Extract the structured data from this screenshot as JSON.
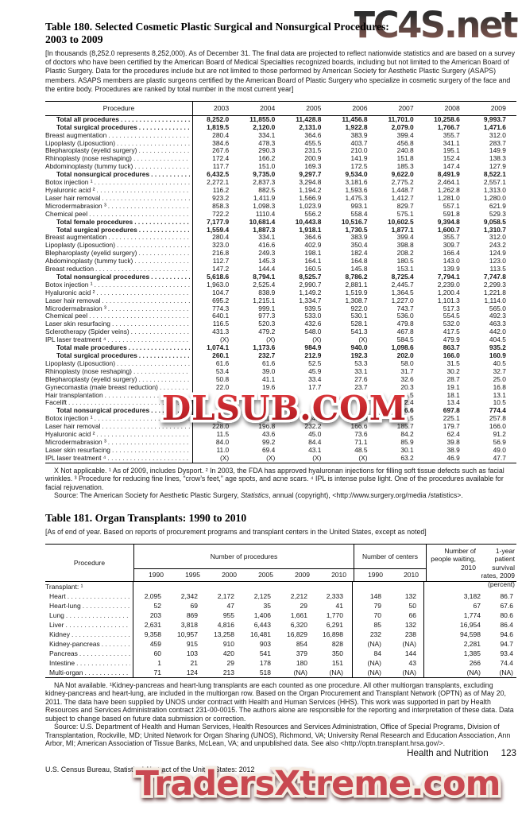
{
  "watermarks": {
    "top": "TC4S.net",
    "top_color_from": "#1d1d1d",
    "top_color_to": "#8f564c",
    "middle": "DLSUB.COM",
    "middle_color_from": "#e23a3f",
    "middle_color_to": "#a8151b",
    "bottom": "TradersXtreme.com",
    "bottom_color": "#c94a51"
  },
  "table180": {
    "title_line1": "Table 180. Selected Cosmetic Plastic Surgical and Nonsurgical Procedures:",
    "title_line2": "2003 to 2009",
    "note": "[In thousands (8,252.0 represents 8,252,000). As of December 31. The final data are projected to reflect nationwide statistics and are based on a survey of doctors who have been certified by the American Board of Medical Specialties recognized boards, including but not limited to the American Board of Plastic Surgery. Data for the procedures include but are not limited to those performed by American Society for Aesthetic Plastic Surgery (ASAPS) members. ASAPS members are plastic surgeons certified by the American Board of Plastic Surgery who specialize in cosmetic surgery of the face and the entire body. Procedures are ranked by total number in the most current year]",
    "col_header": "Procedure",
    "years": [
      "2003",
      "2004",
      "2005",
      "2006",
      "2007",
      "2008",
      "2009"
    ],
    "rows": [
      {
        "label": "Total all procedures",
        "bold": true,
        "values": [
          "8,252.0",
          "11,855.0",
          "11,428.8",
          "11,456.8",
          "11,701.0",
          "10,258.6",
          "9,993.7"
        ]
      },
      {
        "label": "Total surgical procedures",
        "bold": true,
        "values": [
          "1,819.5",
          "2,120.0",
          "2,131.0",
          "1,922.8",
          "2,079.0",
          "1,766.7",
          "1,471.6"
        ]
      },
      {
        "label": "Breast augmentation",
        "bold": false,
        "values": [
          "280.4",
          "334.1",
          "364.6",
          "383.9",
          "399.4",
          "355.7",
          "312.0"
        ]
      },
      {
        "label": "Lipoplasty (Liposuction)",
        "bold": false,
        "values": [
          "384.6",
          "478.3",
          "455.5",
          "403.7",
          "456.8",
          "341.1",
          "283.7"
        ]
      },
      {
        "label": "Blepharoplasty (eyelid surgery)",
        "bold": false,
        "values": [
          "267.6",
          "290.3",
          "231.5",
          "210.0",
          "240.8",
          "195.1",
          "149.9"
        ]
      },
      {
        "label": "Rhinoplasty (nose reshaping)",
        "bold": false,
        "values": [
          "172.4",
          "166.2",
          "200.9",
          "141.9",
          "151.8",
          "152.4",
          "138.3"
        ]
      },
      {
        "label": "Abdominoplasty (tummy tuck)",
        "bold": false,
        "values": [
          "117.7",
          "151.0",
          "169.3",
          "172.5",
          "185.3",
          "147.4",
          "127.9"
        ]
      },
      {
        "label": "Total nonsurgical procedures",
        "bold": true,
        "values": [
          "6,432.5",
          "9,735.0",
          "9,297.7",
          "9,534.0",
          "9,622.0",
          "8,491.9",
          "8,522.1"
        ]
      },
      {
        "label": "Botox injection ¹",
        "bold": false,
        "values": [
          "2,272.1",
          "2,837.3",
          "3,294.8",
          "3,181.6",
          "2,775.2",
          "2,464.1",
          "2,557.1"
        ]
      },
      {
        "label": "Hyaluronic acid ²",
        "bold": false,
        "values": [
          "116.2",
          "882.5",
          "1,194.2",
          "1,593.6",
          "1,448.7",
          "1,262.8",
          "1,313.0"
        ]
      },
      {
        "label": "Laser hair removal",
        "bold": false,
        "values": [
          "923.2",
          "1,411.9",
          "1,566.9",
          "1,475.3",
          "1,412.7",
          "1,281.0",
          "1,280.0"
        ]
      },
      {
        "label": "Microdermabrasion ³",
        "bold": false,
        "values": [
          "858.3",
          "1,098.3",
          "1,023.9",
          "993.1",
          "829.7",
          "557.1",
          "621.9"
        ]
      },
      {
        "label": "Chemical peel",
        "bold": false,
        "values": [
          "722.2",
          "1110.4",
          "556.2",
          "558.4",
          "575.1",
          "591.8",
          "529.3"
        ]
      },
      {
        "label": "Total female procedures",
        "bold": true,
        "values": [
          "7,177.9",
          "10,681.4",
          "10,443.8",
          "10,516.7",
          "10,602.5",
          "9,394.8",
          "9,058.5"
        ]
      },
      {
        "label": "Total surgical procedures",
        "bold": true,
        "values": [
          "1,559.4",
          "1,887.3",
          "1,918.1",
          "1,730.5",
          "1,877.1",
          "1,600.7",
          "1,310.7"
        ]
      },
      {
        "label": "Breast augmentation",
        "bold": false,
        "values": [
          "280.4",
          "334.1",
          "364.6",
          "383.9",
          "399.4",
          "355.7",
          "312.0"
        ]
      },
      {
        "label": "Lipoplasty (Liposuction)",
        "bold": false,
        "values": [
          "323.0",
          "416.6",
          "402.9",
          "350.4",
          "398.8",
          "309.7",
          "243.2"
        ]
      },
      {
        "label": "Blepharoplasty (eyelid surgery)",
        "bold": false,
        "values": [
          "216.8",
          "249.3",
          "198.1",
          "182.4",
          "208.2",
          "166.4",
          "124.9"
        ]
      },
      {
        "label": "Abdominoplasty (tummy tuck)",
        "bold": false,
        "values": [
          "112.7",
          "145.3",
          "164.1",
          "164.8",
          "180.5",
          "143.0",
          "123.0"
        ]
      },
      {
        "label": "Breast reduction",
        "bold": false,
        "values": [
          "147.2",
          "144.4",
          "160.5",
          "145.8",
          "153.1",
          "139.9",
          "113.5"
        ]
      },
      {
        "label": "Total nonsurgical procedures",
        "bold": true,
        "values": [
          "5,618.6",
          "8,794.1",
          "8,525.7",
          "8,786.2",
          "8,725.4",
          "7,794.1",
          "7,747.8"
        ]
      },
      {
        "label": "Botox injection ¹",
        "bold": false,
        "values": [
          "1,963.0",
          "2,525.4",
          "2,990.7",
          "2,881.1",
          "2,445.7",
          "2,239.0",
          "2,299.3"
        ]
      },
      {
        "label": "Hyaluronic acid ²",
        "bold": false,
        "values": [
          "104.7",
          "838.9",
          "1,149.2",
          "1,519.9",
          "1,364.5",
          "1,200.4",
          "1,221.8"
        ]
      },
      {
        "label": "Laser hair removal",
        "bold": false,
        "values": [
          "695.2",
          "1,215.1",
          "1,334.7",
          "1,308.7",
          "1,227.0",
          "1,101.3",
          "1,114.0"
        ]
      },
      {
        "label": "Microdermabrasion ³",
        "bold": false,
        "values": [
          "774.3",
          "999.1",
          "939.5",
          "922.0",
          "743.7",
          "517.3",
          "565.0"
        ]
      },
      {
        "label": "Chemical peel",
        "bold": false,
        "values": [
          "640.1",
          "977.3",
          "533.0",
          "530.1",
          "536.0",
          "554.5",
          "492.3"
        ]
      },
      {
        "label": "Laser skin resurfacing",
        "bold": false,
        "values": [
          "116.5",
          "520.3",
          "432.6",
          "528.1",
          "479.8",
          "532.0",
          "463.3"
        ]
      },
      {
        "label": "Sclerotherapy (Spider veins)",
        "bold": false,
        "values": [
          "431.3",
          "479.2",
          "548.0",
          "541.3",
          "467.8",
          "417.5",
          "442.0"
        ]
      },
      {
        "label": "IPL laser treatment ⁴",
        "bold": false,
        "values": [
          "(X)",
          "(X)",
          "(X)",
          "(X)",
          "584.5",
          "479.9",
          "404.5"
        ]
      },
      {
        "label": "Total male procedures",
        "bold": true,
        "values": [
          "1,074.1",
          "1,173.6",
          "984.9",
          "940.0",
          "1,098.6",
          "863.7",
          "935.2"
        ]
      },
      {
        "label": "Total surgical procedures",
        "bold": true,
        "values": [
          "260.1",
          "232.7",
          "212.9",
          "192.3",
          "202.0",
          "166.0",
          "160.9"
        ]
      },
      {
        "label": "Lipoplasty (Liposuction)",
        "bold": false,
        "values": [
          "61.6",
          "61.6",
          "52.5",
          "53.3",
          "58.0",
          "31.5",
          "40.5"
        ]
      },
      {
        "label": "Rhinoplasty (nose reshaping)",
        "bold": false,
        "values": [
          "53.4",
          "39.0",
          "45.9",
          "33.1",
          "31.7",
          "30.2",
          "32.7"
        ]
      },
      {
        "label": "Blepharoplasty (eyelid surgery)",
        "bold": false,
        "values": [
          "50.8",
          "41.1",
          "33.4",
          "27.6",
          "32.6",
          "28.7",
          "25.0"
        ]
      },
      {
        "label": "Gynecomastia (male breast reduction)",
        "bold": false,
        "values": [
          "22.0",
          "19.6",
          "17.7",
          "23.7",
          "20.3",
          "19.1",
          "16.8"
        ]
      },
      {
        "label": "Hair transplantation",
        "bold": false,
        "values": [
          "",
          "",
          "",
          "",
          "16.5",
          "18.1",
          "13.1"
        ]
      },
      {
        "label": "Facelift",
        "bold": false,
        "values": [
          "",
          "",
          "",
          "",
          "12.4",
          "13.4",
          "10.5"
        ]
      },
      {
        "label": "Total nonsurgical procedures",
        "bold": true,
        "values": [
          "",
          "",
          "",
          "",
          "896.6",
          "697.8",
          "774.4"
        ]
      },
      {
        "label": "Botox injection ¹",
        "bold": false,
        "values": [
          "309.1",
          "311.9",
          "304.1",
          "300.5",
          "329.5",
          "225.1",
          "257.8"
        ]
      },
      {
        "label": "Laser hair removal",
        "bold": false,
        "values": [
          "228.0",
          "196.8",
          "232.2",
          "166.6",
          "185.7",
          "179.7",
          "166.0"
        ]
      },
      {
        "label": "Hyaluronic acid ²",
        "bold": false,
        "values": [
          "11.5",
          "43.6",
          "45.0",
          "73.6",
          "84.2",
          "62.4",
          "91.2"
        ]
      },
      {
        "label": "Microdermabrasion ³",
        "bold": false,
        "values": [
          "84.0",
          "99.2",
          "84.4",
          "71.1",
          "85.9",
          "39.8",
          "56.9"
        ]
      },
      {
        "label": "Laser skin resurfacing",
        "bold": false,
        "values": [
          "11.0",
          "69.4",
          "43.1",
          "48.5",
          "30.1",
          "38.9",
          "49.0"
        ]
      },
      {
        "label": "IPL laser treatment ⁴",
        "bold": false,
        "values": [
          "(X)",
          "(X)",
          "(X)",
          "(X)",
          "63.2",
          "46.9",
          "47.7"
        ]
      }
    ],
    "footnote": "X Not applicable. ¹ As of 2009, includes Dysport. ² In 2003, the FDA has approved hyaluronan injections for filling soft tissue defects such as facial wrinkles. ³ Procedure for reducing fine lines, “crow’s feet,” age spots, and acne scars. ⁴ IPL is intense pulse light. One of the procedures available for facial rejuvenation.",
    "source_before": "Source: The American Society for Aesthetic Plastic Surgery, ",
    "source_italic": "Statistics",
    "source_after": ", annual (copyright), <http://www.surgery.org/media /statistics>."
  },
  "table181": {
    "title": "Table 181. Organ Transplants: 1990 to 2010",
    "note": "[As of end of year. Based on reports of procurement programs and transplant centers in the United States, except as noted]",
    "col_header": "Procedure",
    "group_procedures": "Number of procedures",
    "group_centers": "Number of centers",
    "col_waiting": "Number of people waiting, 2010",
    "col_survival": "1-year patient survival rates, 2009 (percent)",
    "proc_years": [
      "1990",
      "1995",
      "2000",
      "2005",
      "2009",
      "2010"
    ],
    "center_years": [
      "1990",
      "2010"
    ],
    "rows": [
      {
        "label": "Transplant: ¹",
        "section": true,
        "values": [
          "",
          "",
          "",
          "",
          "",
          "",
          "",
          "",
          "",
          ""
        ]
      },
      {
        "label": "Heart",
        "section": false,
        "values": [
          "2,095",
          "2,342",
          "2,172",
          "2,125",
          "2,212",
          "2,333",
          "148",
          "132",
          "3,182",
          "86.7"
        ]
      },
      {
        "label": "Heart-lung",
        "section": false,
        "values": [
          "52",
          "69",
          "47",
          "35",
          "29",
          "41",
          "79",
          "50",
          "67",
          "67.6"
        ]
      },
      {
        "label": "Lung",
        "section": false,
        "values": [
          "203",
          "869",
          "955",
          "1,406",
          "1,661",
          "1,770",
          "70",
          "66",
          "1,774",
          "80.6"
        ]
      },
      {
        "label": "Liver",
        "section": false,
        "values": [
          "2,631",
          "3,818",
          "4,816",
          "6,443",
          "6,320",
          "6,291",
          "85",
          "132",
          "16,954",
          "86.4"
        ]
      },
      {
        "label": "Kidney",
        "section": false,
        "values": [
          "9,358",
          "10,957",
          "13,258",
          "16,481",
          "16,829",
          "16,898",
          "232",
          "238",
          "94,598",
          "94.6"
        ]
      },
      {
        "label": "Kidney-pancreas",
        "section": false,
        "values": [
          "459",
          "915",
          "910",
          "903",
          "854",
          "828",
          "(NA)",
          "(NA)",
          "2,281",
          "94.7"
        ]
      },
      {
        "label": "Pancreas",
        "section": false,
        "values": [
          "60",
          "103",
          "420",
          "541",
          "379",
          "350",
          "84",
          "144",
          "1,385",
          "93.4"
        ]
      },
      {
        "label": "Intestine",
        "section": false,
        "values": [
          "1",
          "21",
          "29",
          "178",
          "180",
          "151",
          "(NA)",
          "43",
          "266",
          "74.4"
        ]
      },
      {
        "label": "Multi-organ",
        "section": false,
        "values": [
          "71",
          "124",
          "213",
          "518",
          "(NA)",
          "(NA)",
          "(NA)",
          "(NA)",
          "(NA)",
          "(NA)"
        ]
      }
    ],
    "footnote": "NA Not available. ¹Kidney-pancreas and heart-lung transplants are each counted as one procedure. All other multiorgan transplants, excluding kidney-pancreas and heart-lung, are included in the multiorgan row. Based on the Organ Procurement and Transplant Network (OPTN) as of May 20, 2011. The data have been supplied by UNOS under contract with Health and Human Services (HHS). This work was supported in part by Health Resources and Services Administration contract 231-00-0015. The authors alone are responsible for the reporting and interpretation of these data. Data subject to change based on future data submission or correction.",
    "source": "Source: U.S. Department of Health and Human Services, Health Resources and Services Administration, Office of Special Programs, Division of Transplantation, Rockville, MD; United Network for Organ Sharing (UNOS), Richmond, VA; University Renal Research and Education Association, Ann Arbor, MI; American Association of Tissue Banks, McLean, VA; and unpublished data. See also <http://optn.transplant.hrsa.gov/>."
  },
  "footer": {
    "section": "Health and Nutrition",
    "page_number": "123",
    "imprint": "U.S. Census Bureau, Statistical Abstract of the United States: 2012"
  }
}
